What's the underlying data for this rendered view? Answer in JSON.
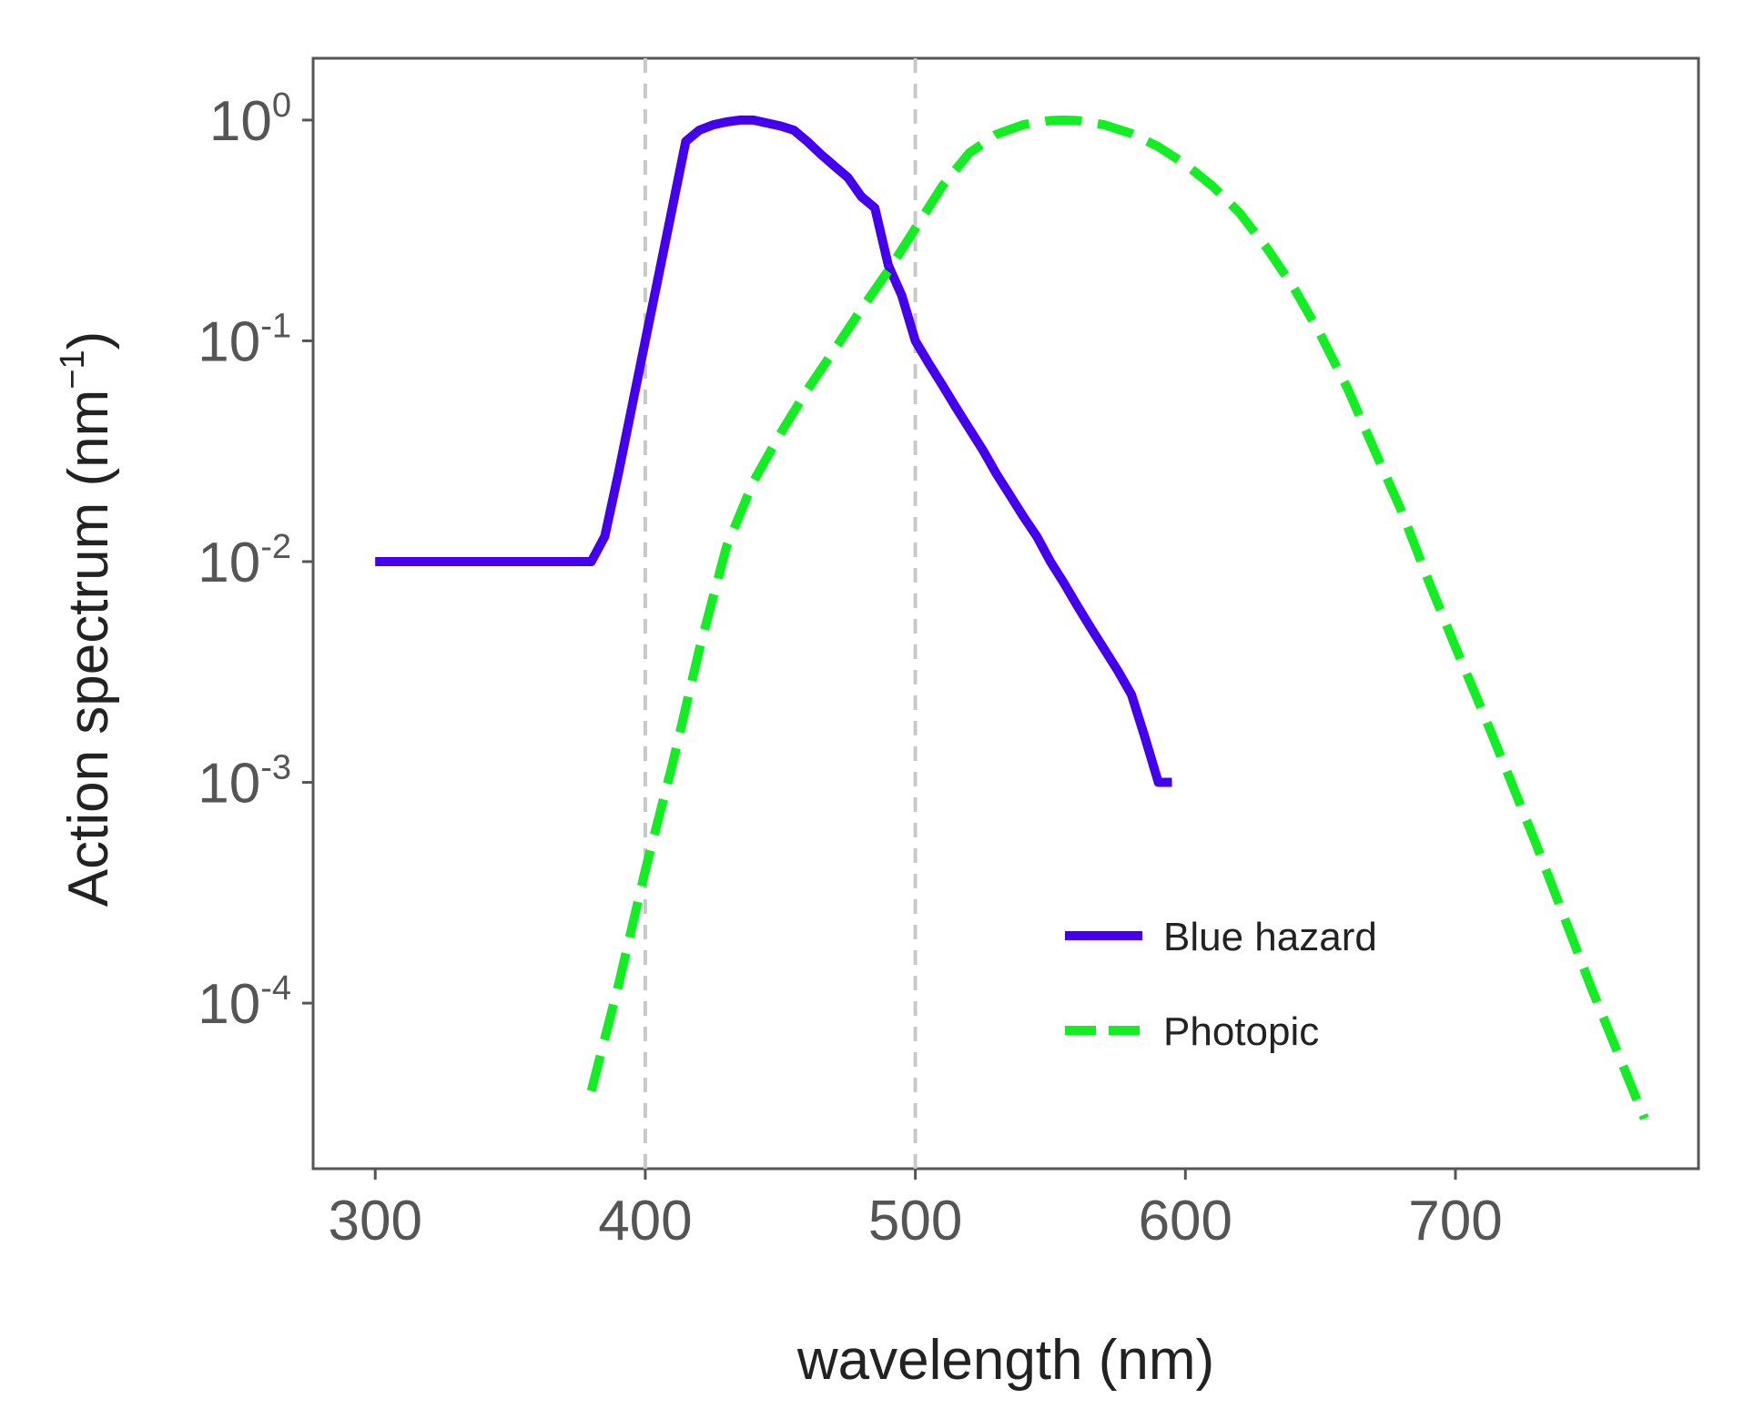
{
  "chart_data": {
    "type": "line",
    "xlabel": "wavelength (nm)",
    "ylabel": "Action spectrum (nm",
    "ylabel_exponent": "−1",
    "ylabel_close": ")",
    "xlim": [
      277,
      790
    ],
    "ylim_log10": [
      -4.75,
      0.28
    ],
    "y_scale": "log",
    "x_ticks": [
      300,
      400,
      500,
      600,
      700
    ],
    "y_ticks": [
      {
        "exp": 0,
        "base": "10",
        "label": "0"
      },
      {
        "exp": -1,
        "base": "10",
        "label": "-1"
      },
      {
        "exp": -2,
        "base": "10",
        "label": "-2"
      },
      {
        "exp": -3,
        "base": "10",
        "label": "-3"
      },
      {
        "exp": -4,
        "base": "10",
        "label": "-4"
      }
    ],
    "reference_lines_x": [
      400,
      500
    ],
    "grid": false,
    "legend_position": "bottom-right",
    "series": [
      {
        "name": "Blue hazard",
        "color": "#4400ee",
        "style": "solid",
        "x": [
          300,
          380,
          385,
          390,
          395,
          400,
          405,
          410,
          415,
          420,
          425,
          430,
          435,
          440,
          445,
          450,
          455,
          460,
          465,
          470,
          475,
          480,
          485,
          490,
          495,
          500,
          505,
          510,
          515,
          520,
          525,
          530,
          535,
          540,
          545,
          550,
          555,
          560,
          565,
          570,
          575,
          580,
          585,
          590,
          595
        ],
        "y": [
          0.01,
          0.01,
          0.013,
          0.025,
          0.05,
          0.1,
          0.2,
          0.4,
          0.8,
          0.9,
          0.95,
          0.98,
          1.0,
          1.0,
          0.97,
          0.94,
          0.9,
          0.8,
          0.7,
          0.62,
          0.55,
          0.45,
          0.4,
          0.22,
          0.16,
          0.1,
          0.079,
          0.063,
          0.05,
          0.04,
          0.032,
          0.025,
          0.02,
          0.016,
          0.013,
          0.01,
          0.008,
          0.0063,
          0.005,
          0.004,
          0.0032,
          0.0025,
          0.0016,
          0.001,
          0.001
        ]
      },
      {
        "name": "Photopic",
        "color": "#11ee22",
        "style": "dashed",
        "x": [
          380,
          390,
          400,
          410,
          420,
          430,
          440,
          450,
          460,
          470,
          480,
          490,
          500,
          510,
          520,
          530,
          540,
          550,
          555,
          560,
          570,
          580,
          590,
          600,
          610,
          620,
          630,
          640,
          650,
          660,
          670,
          680,
          690,
          700,
          710,
          720,
          730,
          740,
          750,
          760,
          770
        ],
        "y": [
          4e-05,
          0.00012,
          0.0004,
          0.0012,
          0.004,
          0.0116,
          0.023,
          0.038,
          0.06,
          0.091,
          0.139,
          0.208,
          0.323,
          0.503,
          0.71,
          0.862,
          0.954,
          0.995,
          1.0,
          0.995,
          0.952,
          0.87,
          0.757,
          0.631,
          0.503,
          0.381,
          0.265,
          0.175,
          0.107,
          0.061,
          0.032,
          0.017,
          0.0082,
          0.0041,
          0.0021,
          0.00105,
          0.00052,
          0.00025,
          0.00012,
          6e-05,
          3e-05
        ]
      }
    ]
  }
}
